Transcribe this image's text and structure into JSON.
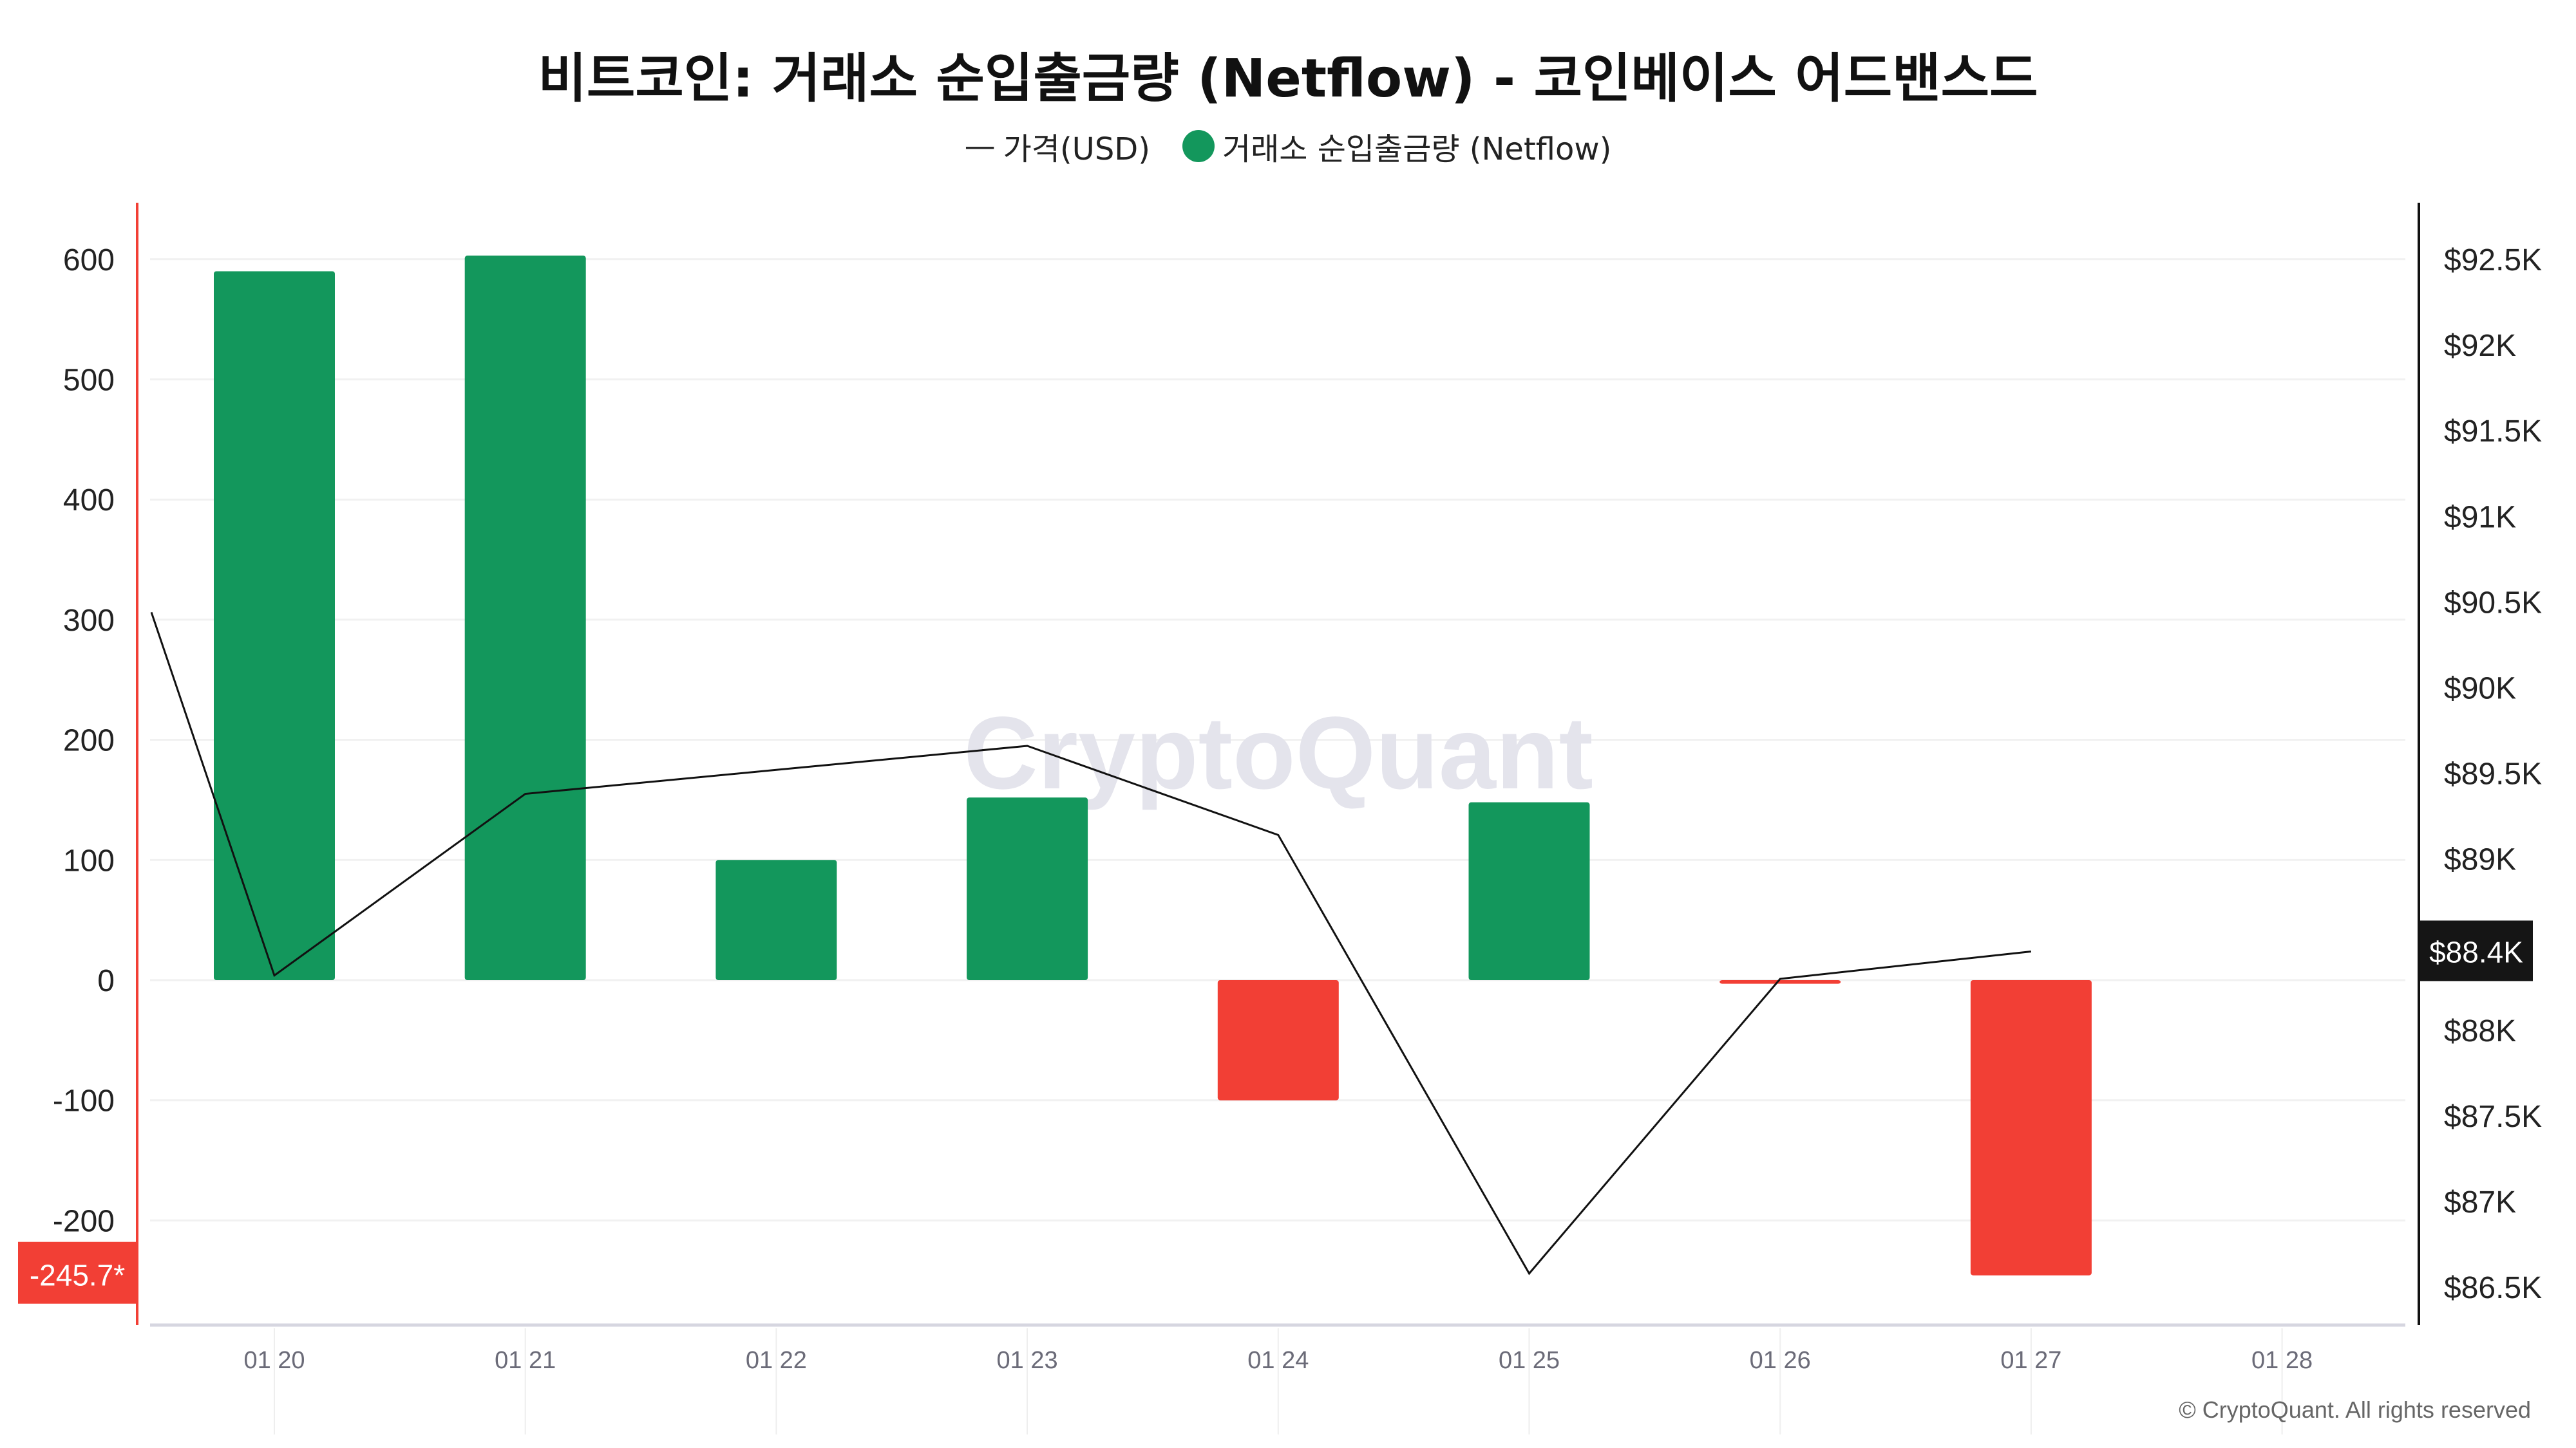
{
  "chart_data": {
    "type": "bar",
    "title": "비트코인: 거래소 순입출금량 (Netflow) - 코인베이스 어드밴스드",
    "legend": {
      "price_label": "가격(USD)",
      "price_symbol": "—",
      "netflow_label": "거래소 순입출금량 (Netflow)",
      "placement": "top-center"
    },
    "categories": [
      "01 20",
      "01 21",
      "01 22",
      "01 23",
      "01 24",
      "01 25",
      "01 26",
      "01 27",
      "01 28"
    ],
    "series": [
      {
        "name": "거래소 순입출금량 (Netflow)",
        "axis": "left",
        "type": "bar",
        "values": [
          590,
          603,
          100,
          152,
          -100,
          148,
          -3,
          -245.7,
          null
        ]
      },
      {
        "name": "가격(USD)",
        "axis": "right",
        "type": "line",
        "start_value": 90440,
        "values": [
          88320,
          89380,
          89520,
          89660,
          89140,
          86580,
          88300,
          88460,
          null
        ]
      }
    ],
    "y_left": {
      "ticks": [
        "600",
        "500",
        "400",
        "300",
        "200",
        "100",
        "0",
        "-100",
        "-200"
      ],
      "range": [
        -290,
        645
      ],
      "current_label": "-245.7*"
    },
    "y_right": {
      "ticks": [
        "$92.5K",
        "$92K",
        "$91.5K",
        "$91K",
        "$90.5K",
        "$90K",
        "$89.5K",
        "$89K",
        "$88K",
        "$87.5K",
        "$87K",
        "$86.5K"
      ],
      "tick_values": [
        92500,
        92000,
        91500,
        91000,
        90500,
        90000,
        89500,
        89000,
        88000,
        87500,
        87000,
        86500
      ],
      "current_label": "$88.4K"
    },
    "colors": {
      "positive": "#13975c",
      "negative": "#f23f35",
      "line": "#111111",
      "left_axis": "#f23f35",
      "right_axis": "#111111"
    },
    "grid": true,
    "watermark": "CryptoQuant"
  },
  "footer": {
    "copyright": "© CryptoQuant. All rights reserved"
  }
}
